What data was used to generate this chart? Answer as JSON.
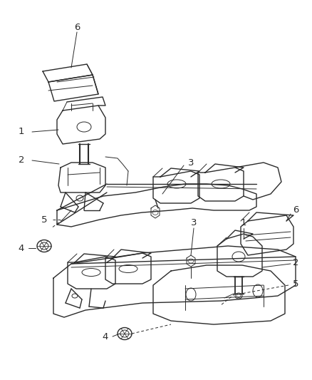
{
  "background_color": "#ffffff",
  "line_color": "#2a2a2a",
  "label_color": "#2a2a2a",
  "figsize": [
    4.38,
    5.33
  ],
  "dpi": 100,
  "xlim": [
    0,
    438
  ],
  "ylim": [
    0,
    533
  ]
}
